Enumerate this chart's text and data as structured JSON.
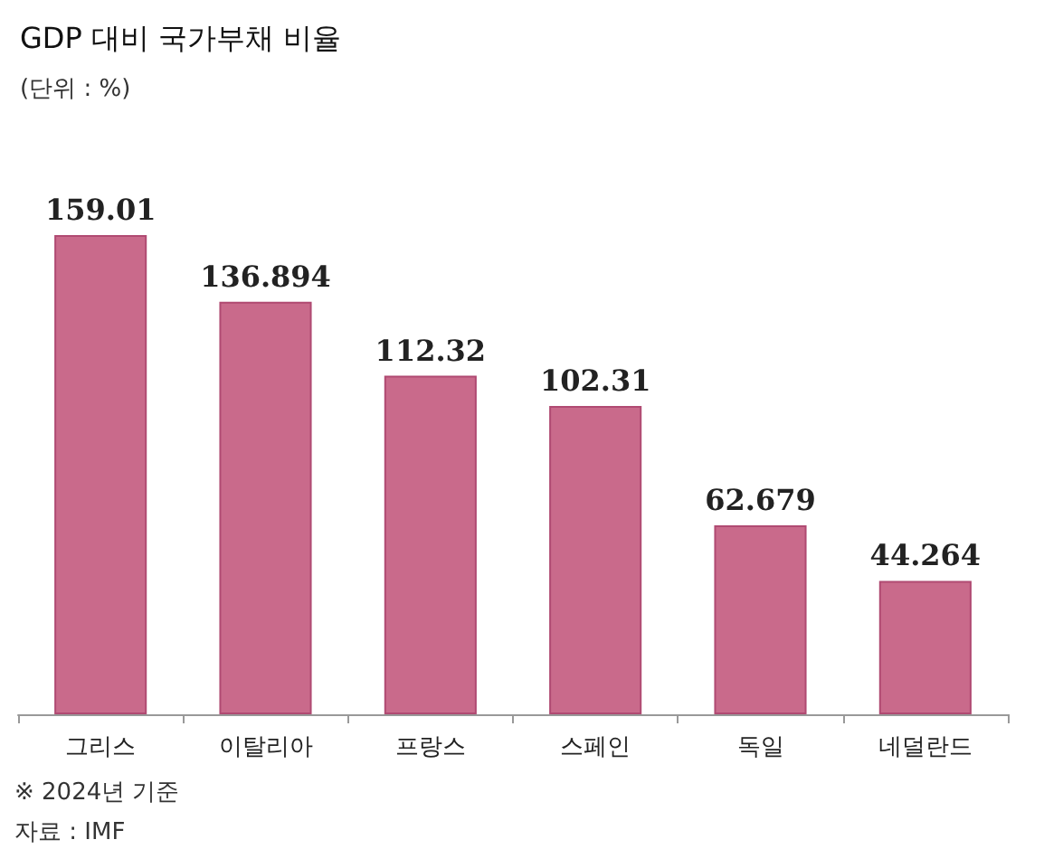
{
  "chart_data": {
    "type": "bar",
    "title": "GDP 대비 국가부채 비율",
    "subtitle": "(단위 : %)",
    "categories": [
      "그리스",
      "이탈리아",
      "프랑스",
      "스페인",
      "독일",
      "네덜란드"
    ],
    "values": [
      159.01,
      136.894,
      112.32,
      102.31,
      62.679,
      44.264
    ],
    "color": "#c96a8b",
    "data_labels": true,
    "annotations": [
      "※ 2024년 기준",
      "자료 : IMF"
    ]
  }
}
